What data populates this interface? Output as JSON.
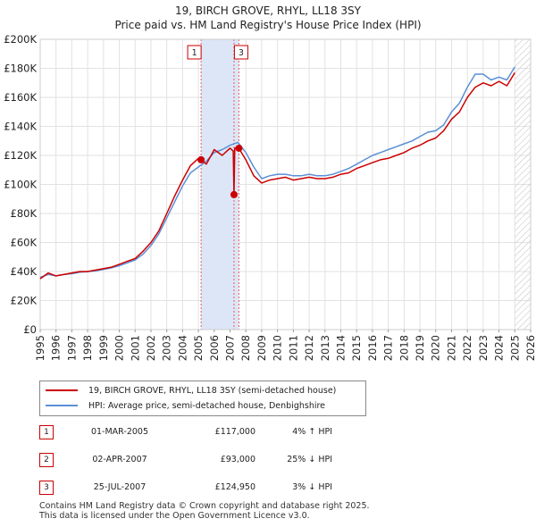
{
  "chart_data": {
    "type": "line",
    "title": "19, BIRCH GROVE, RHYL, LL18 3SY",
    "subtitle": "Price paid vs. HM Land Registry's House Price Index (HPI)",
    "xlim": [
      1995,
      2026
    ],
    "ylim": [
      0,
      200000
    ],
    "x_ticks": [
      1995,
      1996,
      1997,
      1998,
      1999,
      2000,
      2001,
      2002,
      2003,
      2004,
      2005,
      2006,
      2007,
      2008,
      2009,
      2010,
      2011,
      2012,
      2013,
      2014,
      2015,
      2016,
      2017,
      2018,
      2019,
      2020,
      2021,
      2022,
      2023,
      2024,
      2025,
      2026
    ],
    "y_ticks": [
      0,
      20000,
      40000,
      60000,
      80000,
      100000,
      120000,
      140000,
      160000,
      180000,
      200000
    ],
    "y_tick_labels": [
      "£0",
      "£20K",
      "£40K",
      "£60K",
      "£80K",
      "£100K",
      "£120K",
      "£140K",
      "£160K",
      "£180K",
      "£200K"
    ],
    "grid": true,
    "shaded_region": [
      2005.17,
      2007.56
    ],
    "future_hatch_from": 2025.0,
    "series": [
      {
        "name": "19, BIRCH GROVE, RHYL, LL18 3SY (semi-detached house)",
        "color": "#cc0000",
        "x": [
          1995.0,
          1995.5,
          1996.0,
          1996.5,
          1997.0,
          1997.5,
          1998.0,
          1998.5,
          1999.0,
          1999.5,
          2000.0,
          2000.5,
          2001.0,
          2001.5,
          2002.0,
          2002.5,
          2003.0,
          2003.5,
          2004.0,
          2004.5,
          2005.0,
          2005.17,
          2005.5,
          2006.0,
          2006.5,
          2007.0,
          2007.2,
          2007.25,
          2007.3,
          2007.56,
          2008.0,
          2008.5,
          2009.0,
          2009.5,
          2010.0,
          2010.5,
          2011.0,
          2011.5,
          2012.0,
          2012.5,
          2013.0,
          2013.5,
          2014.0,
          2014.5,
          2015.0,
          2015.5,
          2016.0,
          2016.5,
          2017.0,
          2017.5,
          2018.0,
          2018.5,
          2019.0,
          2019.5,
          2020.0,
          2020.5,
          2021.0,
          2021.5,
          2022.0,
          2022.5,
          2023.0,
          2023.5,
          2024.0,
          2024.5,
          2025.0
        ],
        "y": [
          35000,
          39000,
          37000,
          38000,
          39000,
          40000,
          40000,
          41000,
          42000,
          43000,
          45000,
          47000,
          49000,
          54000,
          60000,
          68000,
          80000,
          92000,
          103000,
          113000,
          118000,
          117000,
          114000,
          124000,
          120000,
          125000,
          123000,
          93000,
          125000,
          124950,
          117000,
          106000,
          101000,
          103000,
          104000,
          105000,
          103000,
          104000,
          105000,
          104000,
          104000,
          105000,
          107000,
          108000,
          111000,
          113000,
          115000,
          117000,
          118000,
          120000,
          122000,
          125000,
          127000,
          130000,
          132000,
          137000,
          145000,
          150000,
          160000,
          167000,
          170000,
          168000,
          171000,
          168000,
          177000
        ]
      },
      {
        "name": "HPI: Average price, semi-detached house, Denbighshire",
        "color": "#5b8fd6",
        "x": [
          1995.0,
          1995.5,
          1996.0,
          1996.5,
          1997.0,
          1997.5,
          1998.0,
          1998.5,
          1999.0,
          1999.5,
          2000.0,
          2000.5,
          2001.0,
          2001.5,
          2002.0,
          2002.5,
          2003.0,
          2003.5,
          2004.0,
          2004.5,
          2005.0,
          2005.5,
          2006.0,
          2006.5,
          2007.0,
          2007.5,
          2008.0,
          2008.5,
          2009.0,
          2009.5,
          2010.0,
          2010.5,
          2011.0,
          2011.5,
          2012.0,
          2012.5,
          2013.0,
          2013.5,
          2014.0,
          2014.5,
          2015.0,
          2015.5,
          2016.0,
          2016.5,
          2017.0,
          2017.5,
          2018.0,
          2018.5,
          2019.0,
          2019.5,
          2020.0,
          2020.5,
          2021.0,
          2021.5,
          2022.0,
          2022.5,
          2023.0,
          2023.5,
          2024.0,
          2024.5,
          2025.0
        ],
        "y": [
          36000,
          38000,
          37000,
          38000,
          38500,
          39500,
          40000,
          40500,
          41500,
          42500,
          44000,
          46000,
          48000,
          52000,
          58000,
          66000,
          77000,
          88000,
          99000,
          108000,
          112000,
          116000,
          122000,
          124000,
          127000,
          129000,
          122000,
          112000,
          104000,
          106000,
          107000,
          107000,
          106000,
          106000,
          107000,
          106000,
          106000,
          107000,
          109000,
          111000,
          114000,
          117000,
          120000,
          122000,
          124000,
          126000,
          128000,
          130000,
          133000,
          136000,
          137000,
          141000,
          150000,
          156000,
          167000,
          176000,
          176000,
          172000,
          174000,
          172000,
          181000
        ]
      }
    ],
    "markers": [
      {
        "label": "1",
        "x": 2005.17,
        "y": 117000
      },
      {
        "label": "2",
        "x": 2007.25,
        "y": 93000
      },
      {
        "label": "3",
        "x": 2007.56,
        "y": 124950
      }
    ]
  },
  "legend": {
    "item1": "19, BIRCH GROVE, RHYL, LL18 3SY (semi-detached house)",
    "item2": "HPI: Average price, semi-detached house, Denbighshire"
  },
  "transactions": [
    {
      "num": "1",
      "date": "01-MAR-2005",
      "price": "£117,000",
      "hpi": "4% ↑ HPI"
    },
    {
      "num": "2",
      "date": "02-APR-2007",
      "price": "£93,000",
      "hpi": "25% ↓ HPI"
    },
    {
      "num": "3",
      "date": "25-JUL-2007",
      "price": "£124,950",
      "hpi": "3% ↓ HPI"
    }
  ],
  "footer": {
    "line1": "Contains HM Land Registry data © Crown copyright and database right 2025.",
    "line2": "This data is licensed under the Open Government Licence v3.0."
  }
}
